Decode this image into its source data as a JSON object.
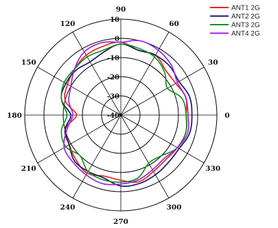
{
  "chart_data": {
    "type": "line",
    "projection": "polar",
    "angle_unit": "degrees",
    "angle_ticks": [
      "0",
      "30",
      "60",
      "90",
      "120",
      "150",
      "180",
      "210",
      "240",
      "270",
      "300",
      "330"
    ],
    "radial_ticks": [
      "10",
      "0",
      "-10",
      "-20",
      "-30",
      "-40"
    ],
    "radial_range": [
      -40,
      10
    ],
    "grid": true,
    "legend_position": "top-right",
    "angles": [
      0,
      15,
      30,
      45,
      60,
      75,
      90,
      105,
      120,
      135,
      150,
      165,
      180,
      195,
      210,
      225,
      240,
      255,
      270,
      285,
      300,
      315,
      330,
      345
    ],
    "series": [
      {
        "name": "ANT1 2G",
        "color": "#e8231c",
        "values": [
          -6,
          -5,
          -7,
          -7,
          -4,
          -5,
          -2,
          -3,
          -4,
          -6,
          -8,
          -10,
          -17,
          -10,
          -9,
          -7,
          -5,
          -7,
          -6,
          -4,
          -6,
          -7,
          -6,
          -5
        ]
      },
      {
        "name": "ANT2 2G",
        "color": "#16166e",
        "values": [
          -3,
          -3,
          -5,
          -4,
          -4,
          -5,
          -3,
          -6,
          -8,
          -7,
          -7,
          -8,
          -14,
          -10,
          -9,
          -6,
          -6,
          -6,
          -3,
          -3,
          -4,
          -5,
          -5,
          -3
        ]
      },
      {
        "name": "ANT3 2G",
        "color": "#12921c",
        "values": [
          -6,
          -7,
          -12,
          -8,
          -5,
          -4,
          -3,
          -5,
          -5,
          -6,
          -6,
          -8,
          -12,
          -8,
          -7,
          -10,
          -6,
          -5,
          -5,
          -6,
          -11,
          -10,
          -6,
          -5
        ]
      },
      {
        "name": "ANT4 2G",
        "color": "#9b22e6",
        "values": [
          -5,
          -5,
          -6,
          -3,
          -1,
          0,
          -2,
          -1,
          -2,
          -6,
          -10,
          -12,
          -15,
          -11,
          -6,
          -5,
          -4,
          -3,
          -4,
          -5,
          -7,
          -8,
          -6,
          -4
        ]
      }
    ]
  }
}
